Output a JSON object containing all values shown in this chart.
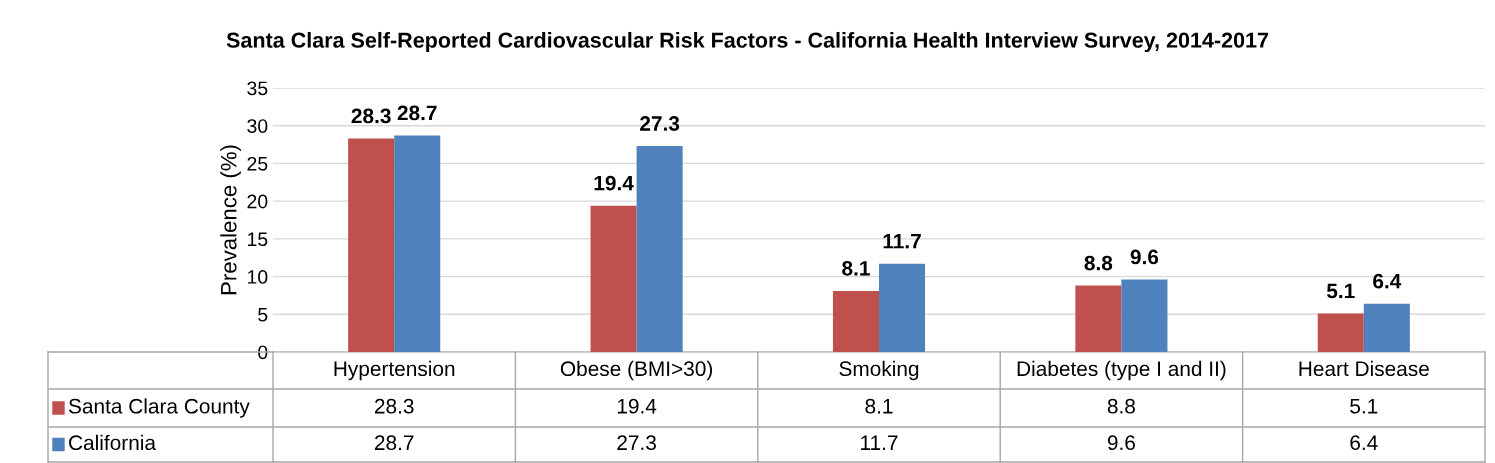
{
  "chart_data": {
    "type": "bar",
    "title": "Santa Clara Self-Reported Cardiovascular Risk Factors - California Health Interview Survey, 2014-2017",
    "ylabel": "Prevalence (%)",
    "categories": [
      "Hypertension",
      "Obese (BMI>30)",
      "Smoking",
      "Diabetes (type I and II)",
      "Heart Disease"
    ],
    "series": [
      {
        "name": "Santa Clara County",
        "color": "#c0504d",
        "values": [
          28.3,
          19.4,
          8.1,
          8.8,
          5.1
        ]
      },
      {
        "name": "California",
        "color": "#4f81bd",
        "values": [
          28.7,
          27.3,
          11.7,
          9.6,
          6.4
        ]
      }
    ],
    "ylim": [
      0,
      35
    ],
    "yticks": [
      0,
      5,
      10,
      15,
      20,
      25,
      30,
      35
    ],
    "grid": "y",
    "data_labels": true,
    "legend": "bottom left",
    "annotations": [
      "28.3",
      "19.4",
      "8.1",
      "8.8",
      "5.1",
      "28.7",
      "27.3",
      "11.7",
      "9.6",
      "6.4"
    ]
  }
}
